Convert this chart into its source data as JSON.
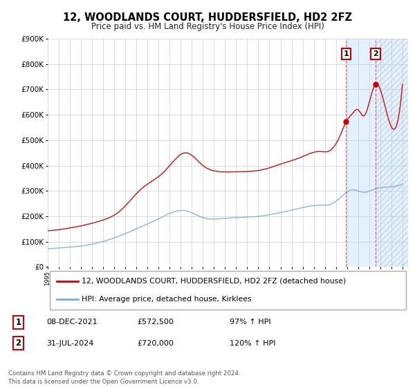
{
  "title": "12, WOODLANDS COURT, HUDDERSFIELD, HD2 2FZ",
  "subtitle": "Price paid vs. HM Land Registry's House Price Index (HPI)",
  "legend_line1": "12, WOODLANDS COURT, HUDDERSFIELD, HD2 2FZ (detached house)",
  "legend_line2": "HPI: Average price, detached house, Kirklees",
  "transaction1_date": "08-DEC-2021",
  "transaction1_price": "£572,500",
  "transaction1_hpi": "97% ↑ HPI",
  "transaction2_date": "31-JUL-2024",
  "transaction2_price": "£720,000",
  "transaction2_hpi": "120% ↑ HPI",
  "footer": "Contains HM Land Registry data © Crown copyright and database right 2024.\nThis data is licensed under the Open Government Licence v3.0.",
  "hpi_color": "#7aadde",
  "price_color": "#cc0000",
  "marker_color": "#cc0000",
  "grid_color": "#cccccc",
  "bg_color": "#ffffff",
  "shade_color": "#ddeeff",
  "transaction1_x": 2021.92,
  "transaction2_x": 2024.58,
  "transaction1_y": 572500,
  "transaction2_y": 720000,
  "ylim": [
    0,
    900000
  ],
  "xlim_start": 1995.0,
  "xlim_end": 2027.5
}
